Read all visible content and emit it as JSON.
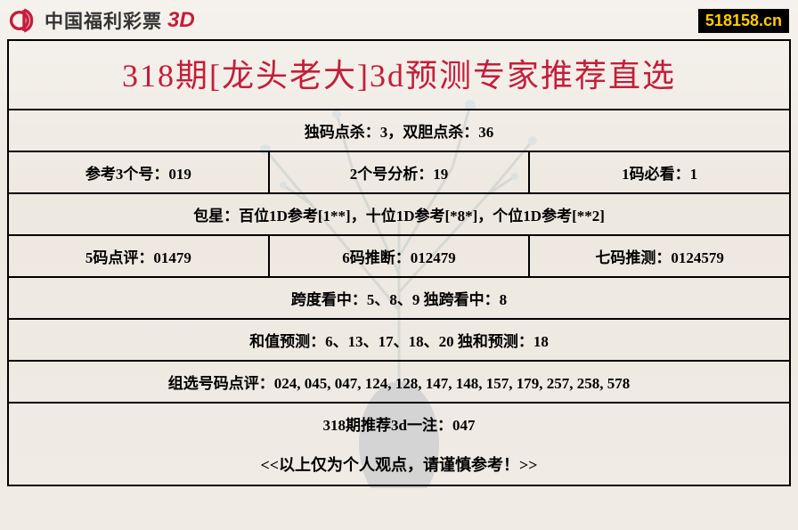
{
  "header": {
    "brand_text": "中国福利彩票",
    "brand_suffix": "3D",
    "site_badge": "518158.cn"
  },
  "title": "318期[龙头老大]3d预测专家推荐直选",
  "rows": [
    {
      "cells": [
        "独码点杀：3，双胆点杀：36"
      ]
    },
    {
      "cells": [
        "参考3个号：019",
        "2个号分析：19",
        "1码必看：1"
      ]
    },
    {
      "cells": [
        "包星：百位1D参考[1**]，十位1D参考[*8*]，个位1D参考[**2]"
      ]
    },
    {
      "cells": [
        "5码点评：01479",
        "6码推断：012479",
        "七码推测：0124579"
      ]
    },
    {
      "cells": [
        "跨度看中：5、8、9 独跨看中：8"
      ]
    },
    {
      "cells": [
        "和值预测：6、13、17、18、20 独和预测：18"
      ]
    },
    {
      "cells": [
        "组选号码点评：024, 045, 047, 124, 128, 147, 148, 157, 179, 257, 258, 578"
      ]
    },
    {
      "cells": [
        "318期推荐3d一注：047"
      ]
    }
  ],
  "footer": "<<以上仅为个人观点，请谨慎参考！>>",
  "colors": {
    "accent": "#c41e3a",
    "badge_bg": "#000000",
    "badge_fg": "#ffcc00",
    "border": "#000000"
  }
}
